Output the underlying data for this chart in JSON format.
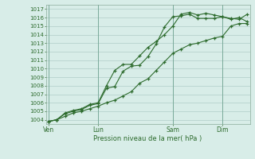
{
  "bg_color": "#d8ede8",
  "grid_color": "#b0ccc8",
  "line_color": "#2d6b2d",
  "marker_color": "#2d6b2d",
  "ylim": [
    1003.5,
    1017.5
  ],
  "yticks": [
    1004,
    1005,
    1006,
    1007,
    1008,
    1009,
    1010,
    1011,
    1012,
    1013,
    1014,
    1015,
    1016,
    1017
  ],
  "xlabel": "Pression niveau de la mer( hPa )",
  "xtick_labels": [
    "Ven",
    "Lun",
    "Sam",
    "Dim"
  ],
  "xtick_positions": [
    0,
    6,
    15,
    21
  ],
  "total_points": 25,
  "line1": [
    1003.8,
    1004.0,
    1004.8,
    1005.1,
    1005.3,
    1005.8,
    1006.0,
    1008.0,
    1009.8,
    1010.5,
    1010.5,
    1011.5,
    1012.5,
    1013.2,
    1014.0,
    1015.0,
    1016.4,
    1016.6,
    1016.3,
    1016.5,
    1016.3,
    1016.1,
    1015.8,
    1016.0,
    1015.5
  ],
  "line2": [
    1003.8,
    1004.0,
    1004.7,
    1005.0,
    1005.2,
    1005.7,
    1005.9,
    1007.7,
    1007.9,
    1009.7,
    1010.3,
    1010.4,
    1011.4,
    1012.9,
    1014.9,
    1016.1,
    1016.2,
    1016.4,
    1015.9,
    1015.9,
    1015.9,
    1016.1,
    1015.9,
    1015.8,
    1016.4
  ],
  "line3": [
    1003.8,
    1004.0,
    1004.4,
    1004.8,
    1005.0,
    1005.3,
    1005.6,
    1006.0,
    1006.3,
    1006.8,
    1007.3,
    1008.3,
    1008.8,
    1009.8,
    1010.8,
    1011.8,
    1012.3,
    1012.8,
    1013.0,
    1013.3,
    1013.6,
    1013.8,
    1015.0,
    1015.3,
    1015.3
  ]
}
